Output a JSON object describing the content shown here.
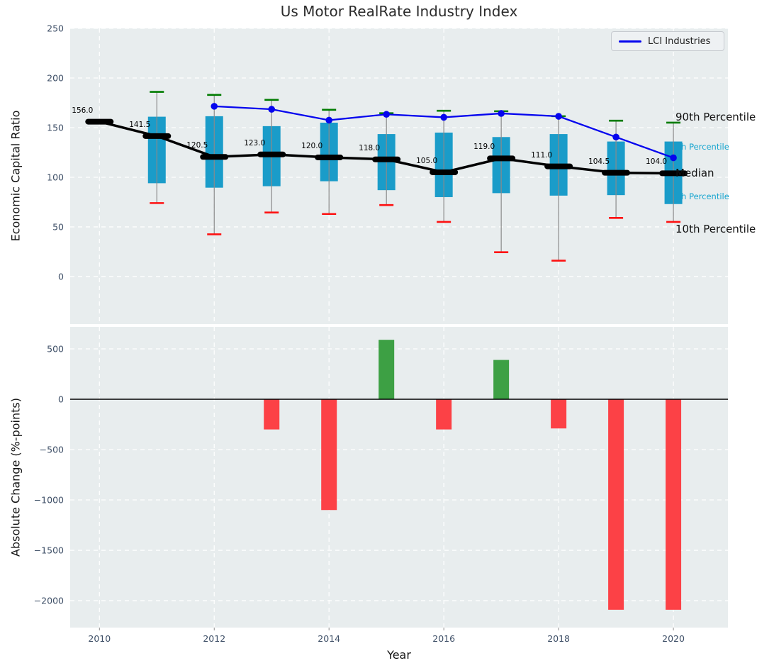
{
  "figure": {
    "title": "Us Motor RealRate Industry Index",
    "xlabel": "Year",
    "legend_label": "LCI Industries"
  },
  "colors": {
    "plot_bg": "#e8edee",
    "grid": "#ffffff",
    "box_fill": "#1a9cc9",
    "whisker_line": "#8a8a8a",
    "cap_top_green": "#007c00",
    "cap_bottom_red": "#fd1111",
    "median_black": "#000000",
    "company_line_blue": "#0505ee",
    "bar_positive_green": "#3da044",
    "bar_negative_red": "#fc4146",
    "tick_text": "#3d4e66",
    "annotation_cyan": "#18a6d0"
  },
  "chart_data": [
    {
      "type": "boxplot+line",
      "panel": "top",
      "title": "Us Motor RealRate Industry Index",
      "ylabel": "Economic Capital Ratio",
      "ylim": [
        -47.9,
        250
      ],
      "yticks": [
        250,
        200,
        150,
        100,
        50,
        0
      ],
      "ytick_labels": [
        "250",
        "200",
        "150",
        "100",
        "50",
        "0"
      ],
      "xlim": [
        2009.49,
        2020.95
      ],
      "xticks": [
        2010,
        2012,
        2014,
        2016,
        2018,
        2020
      ],
      "grid": "white-dashed",
      "legend_position": "upper right",
      "years": [
        2010,
        2011,
        2012,
        2013,
        2014,
        2015,
        2016,
        2017,
        2018,
        2019,
        2020
      ],
      "median": [
        156.0,
        141.5,
        120.5,
        123.0,
        120.0,
        118.0,
        105.0,
        119.0,
        111.0,
        104.5,
        104.0
      ],
      "median_labels": [
        "156.0",
        "141.5",
        "120.5",
        "123.0",
        "120.0",
        "118.0",
        "105.0",
        "119.0",
        "111.0",
        "104.5",
        "104.0"
      ],
      "p10": [
        null,
        74,
        42.5,
        64.5,
        63,
        72,
        55,
        24.5,
        16,
        59,
        55
      ],
      "p25": [
        null,
        94,
        89.5,
        91,
        96,
        87,
        80,
        84,
        81.5,
        82,
        73
      ],
      "p75": [
        null,
        161,
        161.5,
        151.5,
        155,
        143.5,
        145,
        140.5,
        143.5,
        136,
        136
      ],
      "p90": [
        null,
        186,
        183,
        178,
        168,
        164.5,
        167,
        166.5,
        161.5,
        157,
        155
      ],
      "series": [
        {
          "name": "LCI Industries",
          "x": [
            2012,
            2013,
            2014,
            2015,
            2016,
            2017,
            2018,
            2019,
            2020
          ],
          "y": [
            171.5,
            168.5,
            157.5,
            163.4,
            160.4,
            164.3,
            161.4,
            140.5,
            119.6
          ]
        }
      ],
      "annotations": [
        {
          "text": "90th Percentile",
          "style": "large-black",
          "value": 161
        },
        {
          "text": "75th Percentile",
          "style": "small-cyan",
          "value": 131
        },
        {
          "text": "Median",
          "style": "large-black",
          "value": 104
        },
        {
          "text": "25th Percentile",
          "style": "small-cyan",
          "value": 81
        },
        {
          "text": "10th Percentile",
          "style": "large-black",
          "value": 48
        }
      ]
    },
    {
      "type": "bar",
      "panel": "bottom",
      "ylabel": "Absolute Change (%-points)",
      "xlabel": "Year",
      "ylim": [
        -2267,
        718
      ],
      "yticks": [
        500,
        0,
        -500,
        -1000,
        -1500,
        -2000
      ],
      "ytick_labels": [
        "500",
        "0",
        "−500",
        "−1000",
        "−1500",
        "−2000"
      ],
      "xticks": [
        2010,
        2012,
        2014,
        2016,
        2018,
        2020
      ],
      "x": [
        2013,
        2014,
        2015,
        2016,
        2017,
        2018,
        2019,
        2020
      ],
      "values": [
        -300,
        -1100,
        590,
        -300,
        390,
        -290,
        -2090,
        -2090
      ],
      "zero_line": true
    }
  ]
}
